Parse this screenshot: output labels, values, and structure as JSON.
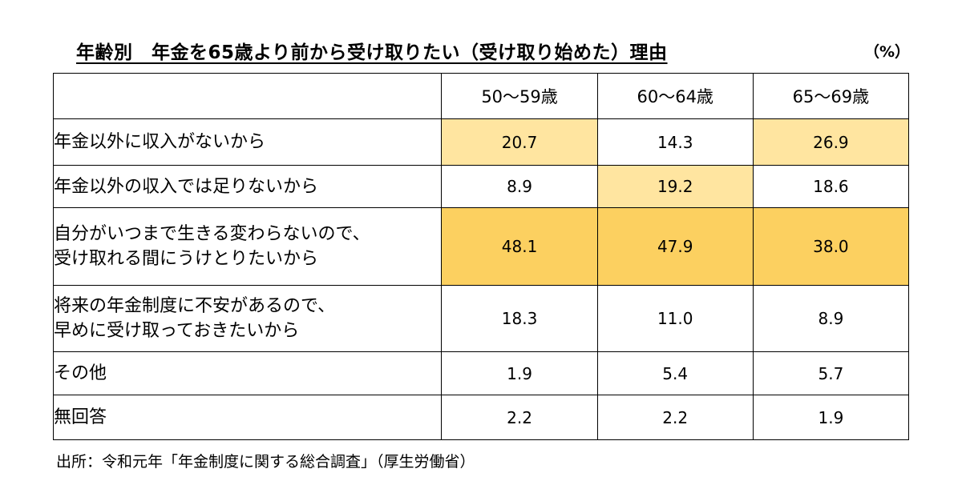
{
  "title": "年齢別　年金を65歳より前から受け取りたい（受け取り始めた）理由",
  "unit": "（%）",
  "table": {
    "headers": [
      "",
      "50～59歳",
      "60～64歳",
      "65～69歳"
    ],
    "rows": [
      {
        "label": [
          "年金以外に収入がないから"
        ],
        "values": [
          "20.7",
          "14.3",
          "26.9"
        ],
        "highlight": [
          "light",
          "",
          "light"
        ]
      },
      {
        "label": [
          "年金以外の収入では足りないから"
        ],
        "values": [
          "8.9",
          "19.2",
          "18.6"
        ],
        "highlight": [
          "",
          "light",
          ""
        ]
      },
      {
        "label": [
          "自分がいつまで生きる変わらないので、",
          "受け取れる間にうけとりたいから"
        ],
        "values": [
          "48.1",
          "47.9",
          "38.0"
        ],
        "highlight": [
          "dark",
          "dark",
          "dark"
        ]
      },
      {
        "label": [
          "将来の年金制度に不安があるので、",
          "早めに受け取っておきたいから"
        ],
        "values": [
          "18.3",
          "11.0",
          "8.9"
        ],
        "highlight": [
          "",
          "",
          ""
        ]
      },
      {
        "label": [
          "その他"
        ],
        "values": [
          "1.9",
          "5.4",
          "5.7"
        ],
        "highlight": [
          "",
          "",
          ""
        ]
      },
      {
        "label": [
          "無回答"
        ],
        "values": [
          "2.2",
          "2.2",
          "1.9"
        ],
        "highlight": [
          "",
          "",
          ""
        ]
      }
    ]
  },
  "highlight_colors": {
    "light": "#ffe5a0",
    "dark": "#fcd060"
  },
  "source": "出所：令和元年「年金制度に関する総合調査」（厚生労働省）"
}
